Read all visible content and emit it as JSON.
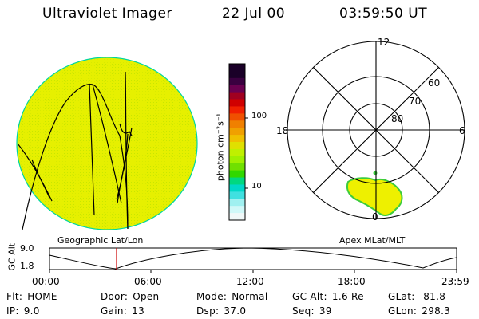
{
  "header": {
    "instrument": "Ultraviolet Imager",
    "date": "22 Jul 00",
    "time": "03:59:50 UT"
  },
  "colors": {
    "image_fill": "#e6f000",
    "image_speckle": "#c8e600",
    "image_edge": "#00d6a0",
    "aurora_fill": "#eef000",
    "aurora_edge": "#3ccc3c",
    "marker": "#cc0000"
  },
  "colorbar": {
    "unit_label": "photon cm⁻²s⁻¹",
    "ticks": [
      "100",
      "10"
    ],
    "colors_top_to_bottom": [
      "#1a0028",
      "#1a0028",
      "#3a0040",
      "#6a0050",
      "#a00020",
      "#d00000",
      "#f02000",
      "#f05000",
      "#f08000",
      "#f0a000",
      "#f0c000",
      "#e0e000",
      "#c0f000",
      "#a0f000",
      "#70e000",
      "#30d800",
      "#00d880",
      "#00d8c8",
      "#40e0e0",
      "#a0f0f0",
      "#d0f8f8",
      "#f0f8f8"
    ]
  },
  "left_panel": {
    "caption": "Geographic Lat/Lon"
  },
  "right_panel": {
    "caption": "Apex MLat/MLT",
    "mlt_labels": {
      "top": "12",
      "left": "18",
      "right": "6",
      "bottom": "0"
    },
    "mlat_labels": [
      "60",
      "70",
      "80"
    ]
  },
  "altitude_plot": {
    "ylabel": "GC Alt",
    "ytick_top": "9.0",
    "ytick_bottom": "1.8",
    "x_ticks": [
      "00:00",
      "06:00",
      "12:00",
      "18:00",
      "23:59"
    ],
    "current_time_marker": "03:59:50"
  },
  "status": {
    "flt_label": "Flt:",
    "flt_value": "HOME",
    "ip_label": "IP:",
    "ip_value": "9.0",
    "door_label": "Door:",
    "door_value": "Open",
    "gain_label": "Gain:",
    "gain_value": "13",
    "mode_label": "Mode:",
    "mode_value": "Normal",
    "dsp_label": "Dsp:",
    "dsp_value": "37.0",
    "gcalt_label": "GC Alt:",
    "gcalt_value": "1.6 Re",
    "seq_label": "Seq:",
    "seq_value": "39",
    "glat_label": "GLat:",
    "glat_value": "-81.8",
    "glon_label": "GLon:",
    "glon_value": "298.3"
  }
}
